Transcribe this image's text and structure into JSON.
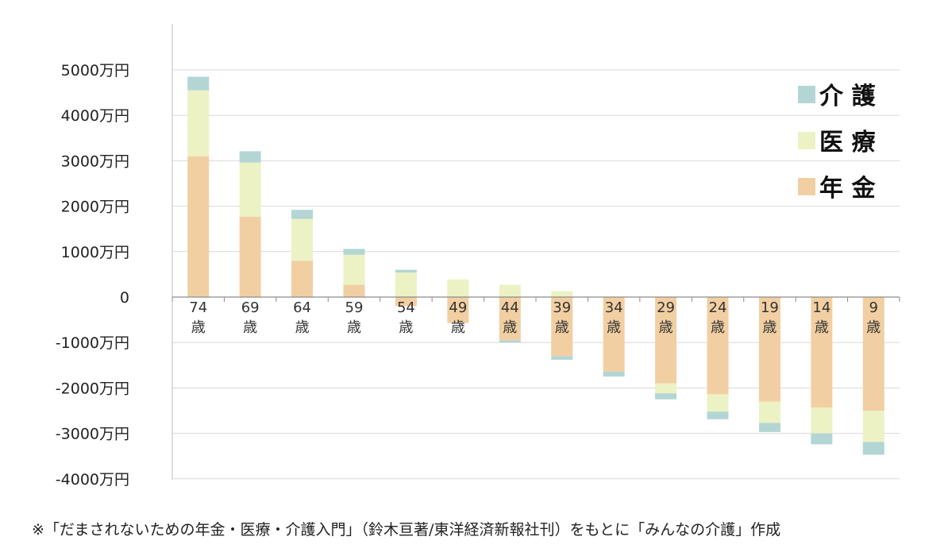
{
  "chart_data": {
    "type": "bar",
    "stacked": true,
    "categories": [
      "74\n歳",
      "69\n歳",
      "64\n歳",
      "59\n歳",
      "54\n歳",
      "49\n歳",
      "44\n歳",
      "39\n歳",
      "34\n歳",
      "29\n歳",
      "24\n歳",
      "19\n歳",
      "14\n歳",
      "9\n歳"
    ],
    "series": [
      {
        "name": "年 金",
        "color": "#f2cfa2",
        "values": [
          3100,
          1770,
          800,
          270,
          -200,
          -570,
          -950,
          -1300,
          -1640,
          -1900,
          -2140,
          -2300,
          -2430,
          -2500
        ]
      },
      {
        "name": "医 療",
        "color": "#ecf2c4",
        "values": [
          1450,
          1190,
          920,
          660,
          540,
          390,
          270,
          130,
          0,
          -220,
          -380,
          -470,
          -570,
          -690
        ]
      },
      {
        "name": "介 護",
        "color": "#b3d6d4",
        "values": [
          300,
          250,
          200,
          130,
          60,
          0,
          -50,
          -80,
          -110,
          -130,
          -170,
          -200,
          -240,
          -280
        ]
      }
    ],
    "y_ticks": [
      "5000万円",
      "4000万円",
      "3000万円",
      "2000万円",
      "1000万円",
      "0",
      "-1000万円",
      "-2000万円",
      "-3000万円",
      "-4000万円"
    ],
    "ylim": [
      -4000,
      5000
    ],
    "grid": true,
    "legend_position": "top-right",
    "title": "",
    "xlabel": "",
    "ylabel": ""
  },
  "caption": "※「だまされないための年金・医療・介護入門」（鈴木亘著/東洋経済新報社刊）をもとに「みんなの介護」作成"
}
